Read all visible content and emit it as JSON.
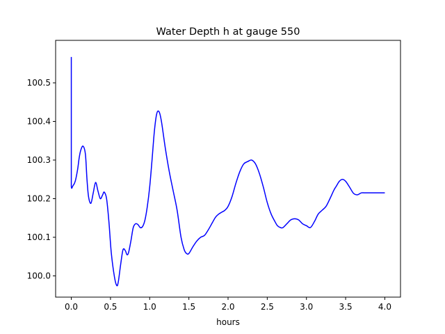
{
  "chart_data": {
    "type": "line",
    "title": "Water Depth h at gauge 550",
    "xlabel": "hours",
    "ylabel": "",
    "xlim": [
      -0.2,
      4.2
    ],
    "ylim": [
      99.945,
      100.61
    ],
    "xticks": [
      0.0,
      0.5,
      1.0,
      1.5,
      2.0,
      2.5,
      3.0,
      3.5,
      4.0
    ],
    "xtick_labels": [
      "0.0",
      "0.5",
      "1.0",
      "1.5",
      "2.0",
      "2.5",
      "3.0",
      "3.5",
      "4.0"
    ],
    "yticks": [
      100.0,
      100.1,
      100.2,
      100.3,
      100.4,
      100.5
    ],
    "ytick_labels": [
      "100.0",
      "100.1",
      "100.2",
      "100.3",
      "100.4",
      "100.5"
    ],
    "grid": false,
    "series": [
      {
        "color": "#0000ff",
        "x": [
          0.0,
          0.0,
          0.0,
          0.02,
          0.05,
          0.08,
          0.1,
          0.12,
          0.15,
          0.18,
          0.2,
          0.22,
          0.25,
          0.28,
          0.31,
          0.34,
          0.37,
          0.4,
          0.42,
          0.45,
          0.48,
          0.51,
          0.55,
          0.58,
          0.6,
          0.63,
          0.66,
          0.69,
          0.71,
          0.73,
          0.76,
          0.79,
          0.82,
          0.85,
          0.88,
          0.91,
          0.94,
          0.97,
          1.0,
          1.03,
          1.06,
          1.09,
          1.12,
          1.15,
          1.2,
          1.25,
          1.3,
          1.35,
          1.4,
          1.44,
          1.47,
          1.5,
          1.55,
          1.6,
          1.65,
          1.7,
          1.75,
          1.8,
          1.84,
          1.88,
          1.92,
          1.96,
          2.0,
          2.05,
          2.1,
          2.15,
          2.2,
          2.25,
          2.3,
          2.35,
          2.4,
          2.45,
          2.5,
          2.55,
          2.6,
          2.63,
          2.67,
          2.7,
          2.75,
          2.8,
          2.85,
          2.9,
          2.95,
          3.0,
          3.05,
          3.1,
          3.15,
          3.2,
          3.25,
          3.3,
          3.35,
          3.38,
          3.42,
          3.46,
          3.5,
          3.55,
          3.6,
          3.65,
          3.7,
          3.75,
          3.8,
          3.84,
          3.88,
          3.92,
          3.96,
          4.0
        ],
        "y": [
          100.567,
          100.3,
          100.232,
          100.233,
          100.245,
          100.275,
          100.305,
          100.325,
          100.336,
          100.315,
          100.25,
          100.205,
          100.188,
          100.215,
          100.242,
          100.22,
          100.2,
          100.21,
          100.217,
          100.2,
          100.14,
          100.06,
          99.998,
          99.975,
          99.985,
          100.03,
          100.068,
          100.065,
          100.055,
          100.06,
          100.09,
          100.125,
          100.135,
          100.133,
          100.125,
          100.128,
          100.145,
          100.18,
          100.23,
          100.3,
          100.375,
          100.42,
          100.425,
          100.4,
          100.33,
          100.27,
          100.22,
          100.17,
          100.1,
          100.068,
          100.058,
          100.058,
          100.075,
          100.09,
          100.1,
          100.105,
          100.12,
          100.138,
          100.152,
          100.16,
          100.165,
          100.17,
          100.18,
          100.205,
          100.24,
          100.27,
          100.29,
          100.296,
          100.3,
          100.29,
          100.265,
          100.23,
          100.19,
          100.16,
          100.14,
          100.13,
          100.125,
          100.125,
          100.135,
          100.145,
          100.148,
          100.145,
          100.135,
          100.13,
          100.125,
          100.14,
          100.16,
          100.17,
          100.18,
          100.2,
          100.222,
          100.232,
          100.245,
          100.25,
          100.245,
          100.23,
          100.214,
          100.21,
          100.215,
          100.215,
          100.215,
          100.215,
          100.215,
          100.215,
          100.215,
          100.215
        ]
      }
    ]
  }
}
